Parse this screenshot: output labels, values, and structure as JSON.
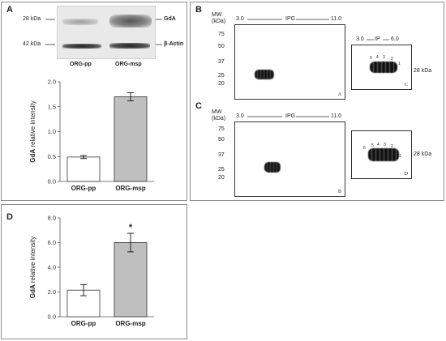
{
  "panels": {
    "A": {
      "label": "A",
      "blot_kda_1": "28 kDa",
      "blot_kda_2": "42 kDa",
      "blot_band_1": "GdA",
      "blot_band_2": "β-Actin",
      "blot_lane_1": "ORG-pp",
      "blot_lane_2": "ORG-msp"
    },
    "B": {
      "label": "B",
      "mw_axis": "MW",
      "mw_unit": "(kDa)",
      "ipg_start": "3.0",
      "ipg_label": "IPG",
      "ipg_end": "11.0",
      "mw_markers": [
        "75",
        "50",
        "37",
        "25",
        "20"
      ],
      "gel_label": "A",
      "ip_start": "3.0",
      "ip_label": "IP",
      "ip_end": "6.0",
      "inset_label": "C",
      "inset_spots": [
        "5",
        "4",
        "3",
        "2",
        "1"
      ],
      "inset_kda": "28 kDa"
    },
    "C": {
      "label": "C",
      "mw_axis": "MW",
      "mw_unit": "(kDa)",
      "ipg_start": "3.0",
      "ipg_label": "IPG",
      "ipg_end": "11.0",
      "mw_markers": [
        "75",
        "50",
        "37",
        "25",
        "20"
      ],
      "gel_label": "B",
      "inset_label": "D",
      "inset_spots": [
        "6",
        "5",
        "4",
        "3",
        "2",
        "1"
      ],
      "inset_kda": "28 kDa"
    },
    "D": {
      "label": "D"
    }
  },
  "chart_data": [
    {
      "type": "bar",
      "panel": "A",
      "categories": [
        "ORG-pp",
        "ORG-msp"
      ],
      "values": [
        0.49,
        1.7
      ],
      "errors": [
        0.03,
        0.08
      ],
      "ylabel_bold": "GdA",
      "ylabel_rest": " relative intensity",
      "ylim": [
        0,
        2.0
      ],
      "yticks": [
        "0.0",
        "0.5",
        "1.0",
        "1.5",
        "2.0"
      ],
      "colors": [
        "#ffffff",
        "#bfbfbf"
      ]
    },
    {
      "type": "bar",
      "panel": "D",
      "categories": [
        "ORG-pp",
        "ORG-msp"
      ],
      "values": [
        2.15,
        6.0
      ],
      "errors": [
        0.45,
        0.75
      ],
      "significance": "*",
      "ylabel_bold": "GdA",
      "ylabel_rest": " relative intensity",
      "ylim": [
        0,
        8.0
      ],
      "yticks": [
        "0.0",
        "2.0",
        "4.0",
        "6.0",
        "8.0"
      ],
      "colors": [
        "#ffffff",
        "#bfbfbf"
      ]
    }
  ]
}
